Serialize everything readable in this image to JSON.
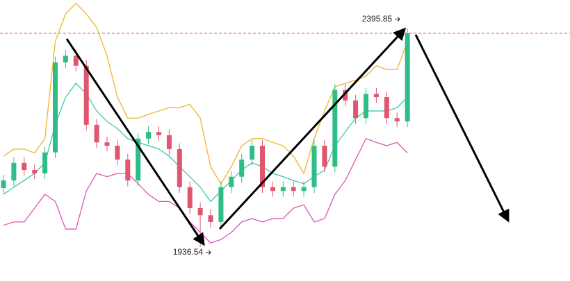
{
  "chart_data": {
    "type": "candlestick",
    "ylim": [
      1865,
      2455
    ],
    "up_color": "#2ebd85",
    "down_color": "#e0566c",
    "open": [
      2060,
      2076,
      2113,
      2098,
      2091,
      2135,
      2324,
      2338,
      2317,
      2193,
      2156,
      2149,
      2120,
      2076,
      2164,
      2178,
      2171,
      2142,
      2062,
      2018,
      2003,
      1989,
      2062,
      2084,
      2120,
      2149,
      2062,
      2054,
      2062,
      2054,
      2062,
      2149,
      2105,
      2266,
      2244,
      2207,
      2258,
      2251,
      2207,
      2200
    ],
    "high": [
      2088,
      2125,
      2125,
      2110,
      2147,
      2336,
      2350,
      2350,
      2329,
      2205,
      2168,
      2161,
      2132,
      2176,
      2190,
      2190,
      2183,
      2154,
      2074,
      2030,
      2015,
      2074,
      2096,
      2132,
      2161,
      2161,
      2074,
      2074,
      2074,
      2074,
      2161,
      2161,
      2278,
      2278,
      2256,
      2270,
      2270,
      2263,
      2219,
      2395.85
    ],
    "low": [
      2048,
      2064,
      2086,
      2079,
      2079,
      2123,
      2312,
      2305,
      2181,
      2144,
      2137,
      2108,
      2064,
      2064,
      2152,
      2159,
      2130,
      2050,
      2006,
      1936.54,
      1977,
      1977,
      2050,
      2072,
      2108,
      2050,
      2042,
      2042,
      2042,
      2042,
      2050,
      2093,
      2093,
      2232,
      2195,
      2195,
      2239,
      2195,
      2188,
      2188
    ],
    "close": [
      2076,
      2113,
      2098,
      2091,
      2135,
      2324,
      2338,
      2317,
      2193,
      2156,
      2149,
      2120,
      2076,
      2164,
      2178,
      2171,
      2142,
      2062,
      2018,
      2003,
      1989,
      2062,
      2084,
      2120,
      2149,
      2062,
      2054,
      2062,
      2054,
      2062,
      2149,
      2105,
      2266,
      2244,
      2207,
      2258,
      2251,
      2207,
      2200,
      2385
    ],
    "lines": [
      {
        "color": "#f0b429",
        "values": [
          2127,
          2142,
          2142,
          2134,
          2164,
          2368,
          2426,
          2448,
          2426,
          2397,
          2338,
          2251,
          2207,
          2207,
          2215,
          2222,
          2229,
          2229,
          2236,
          2207,
          2105,
          2069,
          2105,
          2149,
          2164,
          2164,
          2156,
          2149,
          2127,
          2091,
          2164,
          2222,
          2273,
          2280,
          2287,
          2295,
          2317,
          2309,
          2309,
          2368
        ]
      },
      {
        "color": "#3cc9a8",
        "values": [
          2047,
          2062,
          2076,
          2091,
          2113,
          2193,
          2251,
          2280,
          2258,
          2222,
          2200,
          2185,
          2164,
          2156,
          2149,
          2142,
          2127,
          2105,
          2084,
          2062,
          2032,
          2054,
          2076,
          2098,
          2113,
          2105,
          2091,
          2084,
          2076,
          2069,
          2084,
          2098,
          2149,
          2178,
          2207,
          2222,
          2222,
          2222,
          2229,
          2251
        ]
      },
      {
        "color": "#d957b5",
        "values": [
          1982,
          1989,
          1989,
          2018,
          2047,
          2032,
          1974,
          1974,
          2054,
          2091,
          2084,
          2091,
          2091,
          2069,
          2047,
          2032,
          2032,
          2018,
          1989,
          1967,
          1945,
          1952,
          1967,
          1989,
          1996,
          1989,
          1996,
          1996,
          2018,
          2025,
          1989,
          1996,
          2047,
          2076,
          2120,
          2164,
          2156,
          2149,
          2156,
          2134
        ]
      }
    ],
    "price_line_color": "#e0566c"
  }
}
